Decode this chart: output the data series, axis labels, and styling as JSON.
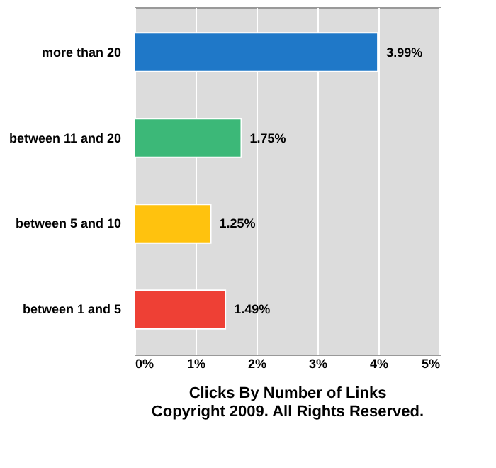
{
  "chart_data": {
    "type": "bar",
    "orientation": "horizontal",
    "xlabel": "Clicks By Number of Links",
    "categories": [
      "more than 20",
      "between 11 and 20",
      "between 5 and 10",
      "between 1 and 5"
    ],
    "values": [
      3.99,
      1.75,
      1.25,
      1.49
    ],
    "colors": [
      "#1f78c8",
      "#3cb878",
      "#ffc20e",
      "#ee4035"
    ],
    "value_labels": [
      "3.99%",
      "1.75%",
      "1.25%",
      "1.49%"
    ],
    "xlim": [
      0,
      5
    ],
    "xticks": [
      {
        "value": 0,
        "label": "0%"
      },
      {
        "value": 1,
        "label": "1%"
      },
      {
        "value": 2,
        "label": "2%"
      },
      {
        "value": 3,
        "label": "3%"
      },
      {
        "value": 4,
        "label": "4%"
      },
      {
        "value": 5,
        "label": "5%"
      }
    ],
    "grid": "x",
    "annotations": [
      "Copyright 2009. All Rights Reserved."
    ]
  }
}
